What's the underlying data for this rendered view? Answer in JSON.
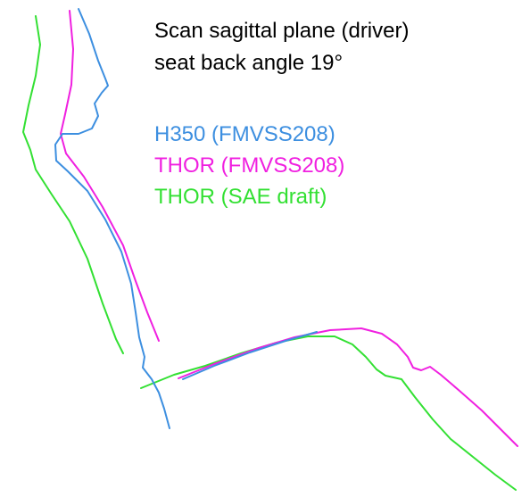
{
  "title_lines": [
    "Scan sagittal plane (driver)",
    "seat back angle 19°"
  ],
  "legend": [
    {
      "label": "H350 (FMVSS208)",
      "color": "#3d8fe0"
    },
    {
      "label": "THOR (FMVSS208)",
      "color": "#f020e0"
    },
    {
      "label": "THOR (SAE draft)",
      "color": "#33e033"
    }
  ]
}
